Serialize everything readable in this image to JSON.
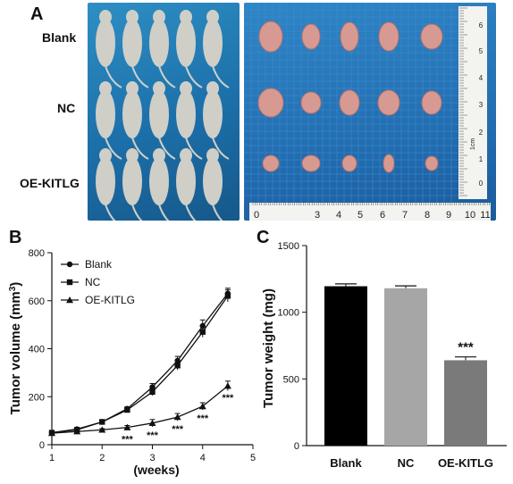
{
  "panels": {
    "a": {
      "letter": "A",
      "groups": [
        "Blank",
        "NC",
        "OE-KITLG"
      ],
      "ruler_numbers_horizontal": [
        "0",
        "3",
        "4",
        "5",
        "6",
        "7",
        "8",
        "9",
        "10",
        "11"
      ],
      "ruler_numbers_vertical": [
        "6",
        "5",
        "4",
        "3",
        "2",
        "1",
        "0"
      ],
      "ruler_unit": "1cm",
      "colors": {
        "background": "#1f6fae",
        "tumor": "#d79a92",
        "mouse": "#cfcfc8"
      }
    },
    "b": {
      "letter": "B"
    },
    "c": {
      "letter": "C"
    }
  },
  "chart_data": [
    {
      "type": "line",
      "xlabel": "(weeks)",
      "ylabel": "Tumor volume (mm3)",
      "xlim": [
        1,
        5
      ],
      "ylim": [
        0,
        800
      ],
      "xticks": [
        1,
        2,
        3,
        4,
        5
      ],
      "yticks": [
        0,
        200,
        400,
        600,
        800
      ],
      "legend_position": "top-left",
      "series": [
        {
          "name": "Blank",
          "marker": "circle",
          "x": [
            1,
            1.5,
            2,
            2.5,
            3,
            3.5,
            4,
            4.5
          ],
          "y": [
            50,
            65,
            95,
            150,
            240,
            350,
            495,
            630
          ],
          "err": [
            5,
            5,
            6,
            8,
            15,
            18,
            25,
            22
          ]
        },
        {
          "name": "NC",
          "marker": "square",
          "x": [
            1,
            1.5,
            2,
            2.5,
            3,
            3.5,
            4,
            4.5
          ],
          "y": [
            50,
            62,
            95,
            145,
            220,
            330,
            470,
            620
          ],
          "err": [
            5,
            5,
            6,
            8,
            15,
            18,
            22,
            25
          ]
        },
        {
          "name": "OE-KITLG",
          "marker": "triangle",
          "x": [
            1,
            1.5,
            2,
            2.5,
            3,
            3.5,
            4,
            4.5
          ],
          "y": [
            48,
            55,
            62,
            72,
            90,
            115,
            160,
            245
          ],
          "err": [
            4,
            4,
            5,
            8,
            15,
            15,
            15,
            20
          ]
        }
      ],
      "annotations": [
        {
          "x": 2.5,
          "y": 72,
          "text": "***"
        },
        {
          "x": 3,
          "y": 90,
          "text": "***"
        },
        {
          "x": 3.5,
          "y": 115,
          "text": "***"
        },
        {
          "x": 4,
          "y": 160,
          "text": "***"
        },
        {
          "x": 4.5,
          "y": 245,
          "text": "***"
        }
      ]
    },
    {
      "type": "bar",
      "ylabel": "Tumor weight (mg)",
      "ylim": [
        0,
        1500
      ],
      "yticks": [
        0,
        500,
        1000,
        1500
      ],
      "categories": [
        "Blank",
        "NC",
        "OE-KITLG"
      ],
      "values": [
        1195,
        1180,
        640
      ],
      "errors": [
        18,
        18,
        25
      ],
      "colors": [
        "#000000",
        "#a6a6a6",
        "#7a7a7a"
      ],
      "annotations": [
        {
          "category": "OE-KITLG",
          "text": "***"
        }
      ]
    }
  ]
}
